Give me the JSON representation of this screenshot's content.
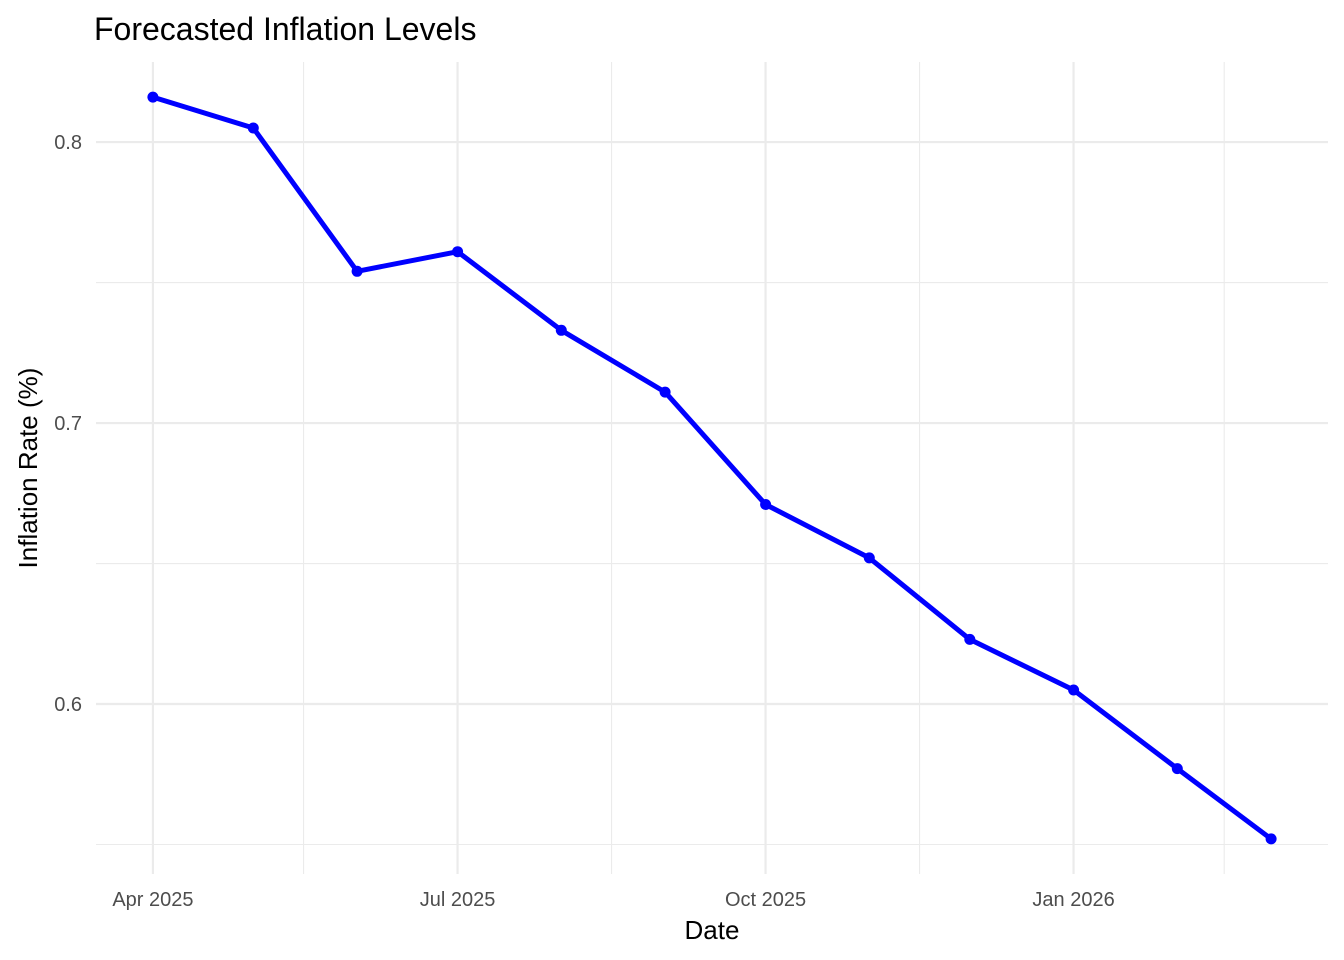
{
  "chart_data": {
    "type": "line",
    "title": "Forecasted Inflation Levels",
    "xlabel": "Date",
    "ylabel": "Inflation Rate (%)",
    "series": [
      {
        "x": [
          "2025-04-01",
          "2025-05-01",
          "2025-06-01",
          "2025-07-01",
          "2025-08-01",
          "2025-09-01",
          "2025-10-01",
          "2025-11-01",
          "2025-12-01",
          "2026-01-01",
          "2026-02-01",
          "2026-03-01"
        ],
        "values": [
          0.816,
          0.805,
          0.754,
          0.761,
          0.733,
          0.711,
          0.671,
          0.652,
          0.623,
          0.605,
          0.577,
          0.552
        ],
        "color": "#0000ff"
      }
    ],
    "x_ticks": [
      {
        "date": "2025-04-01",
        "label": "Apr 2025"
      },
      {
        "date": "2025-07-01",
        "label": "Jul 2025"
      },
      {
        "date": "2025-10-01",
        "label": "Oct 2025"
      },
      {
        "date": "2026-01-01",
        "label": "Jan 2026"
      }
    ],
    "x_minor_ticks": [
      "2025-05-16",
      "2025-08-16",
      "2025-11-16",
      "2026-02-15"
    ],
    "y_ticks": [
      0.6,
      0.7,
      0.8
    ],
    "y_minor_ticks": [
      0.55,
      0.65,
      0.75
    ],
    "xlim": [
      "2025-03-15",
      "2026-03-18"
    ],
    "ylim": [
      0.5395,
      0.8285
    ],
    "grid": true,
    "legend": "none"
  }
}
